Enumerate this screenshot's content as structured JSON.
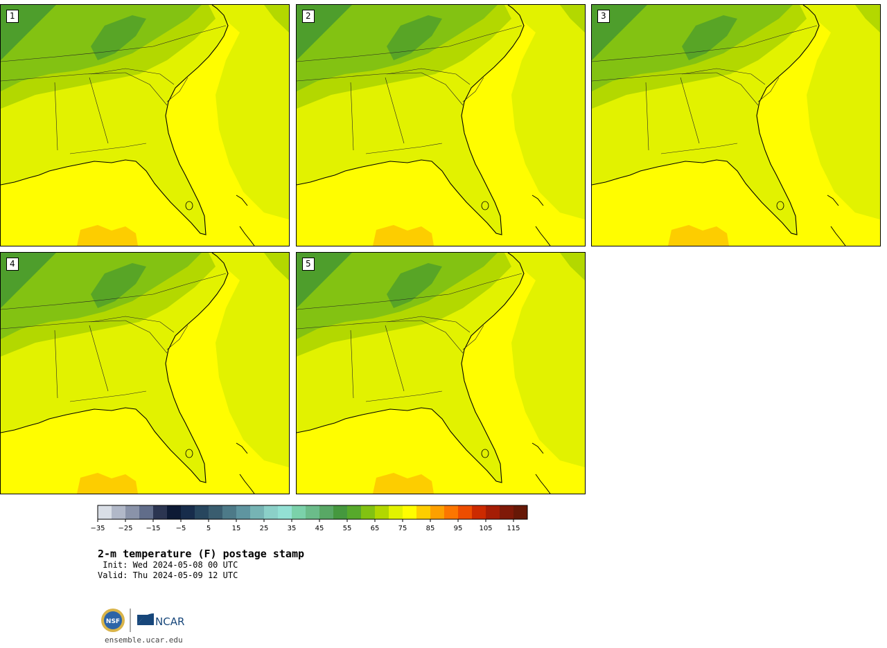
{
  "panels": [
    {
      "label": "1"
    },
    {
      "label": "2"
    },
    {
      "label": "3"
    },
    {
      "label": "4"
    },
    {
      "label": "5"
    }
  ],
  "colorbar": {
    "colors": [
      "#d9dee6",
      "#b1b8c8",
      "#8a93a9",
      "#616d8a",
      "#2b3551",
      "#0d1a35",
      "#172c4b",
      "#27465e",
      "#3a5d6f",
      "#4d7a88",
      "#5f95a0",
      "#76b4b4",
      "#8bd0c8",
      "#93e0d4",
      "#7bd1aa",
      "#6bbc8a",
      "#58a865",
      "#45983e",
      "#57a92b",
      "#82c212",
      "#b2d700",
      "#e1f200",
      "#fffd00",
      "#fdcd00",
      "#fda000",
      "#fc7600",
      "#ed4d00",
      "#cc2a00",
      "#a51d05",
      "#7f1908",
      "#661807"
    ],
    "tick_labels": [
      "−35",
      "−25",
      "−15",
      "−5",
      "5",
      "15",
      "25",
      "35",
      "45",
      "55",
      "65",
      "75",
      "85",
      "95",
      "105",
      "115"
    ]
  },
  "caption": {
    "title": "2-m temperature (F) postage stamp",
    "init": " Init: Wed 2024-05-08 00 UTC",
    "valid": "Valid: Thu 2024-05-09 12 UTC"
  },
  "logos": {
    "nsf": "NSF",
    "ncar": "NCAR",
    "url": "ensemble.ucar.edu"
  },
  "legend_colors": {
    "land_cool": "#4e9e2c",
    "land_mid": "#83c212",
    "land_warm": "#b3d800",
    "land_main": "#e2f200",
    "ocean_warm": "#fffd00",
    "hot": "#fdcd00"
  }
}
